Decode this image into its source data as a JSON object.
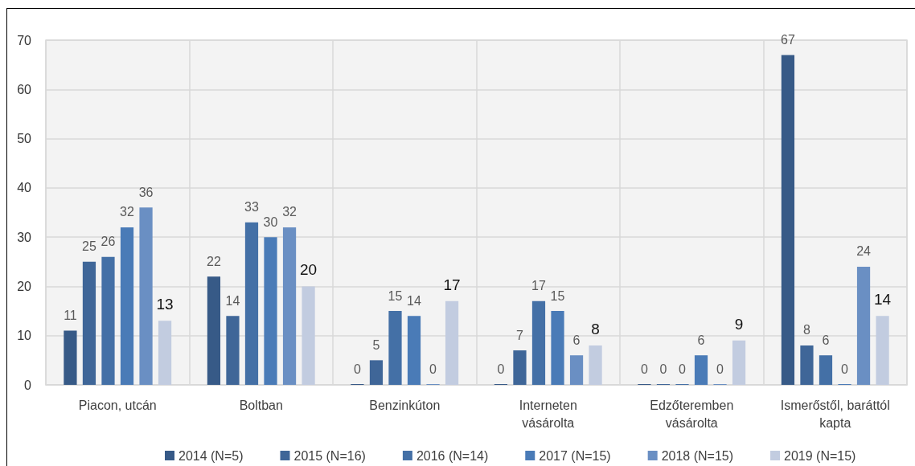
{
  "chart_data": {
    "type": "bar",
    "categories": [
      "Piacon, utcán",
      "Boltban",
      "Benzinkúton",
      "Interneten\nvásárolta",
      "Edzőteremben\nvásárolta",
      "Ismerőstől, baráttól\nkapta"
    ],
    "series": [
      {
        "name": "2014 (N=5)",
        "color": "#375a87",
        "values": [
          11,
          22,
          0,
          0,
          0,
          67
        ]
      },
      {
        "name": "2015 (N=16)",
        "color": "#3f6698",
        "values": [
          25,
          14,
          5,
          7,
          0,
          8
        ]
      },
      {
        "name": "2016 (N=14)",
        "color": "#4470a6",
        "values": [
          26,
          33,
          15,
          17,
          0,
          6
        ]
      },
      {
        "name": "2017 (N=15)",
        "color": "#4a7bb7",
        "values": [
          32,
          30,
          14,
          15,
          6,
          0
        ]
      },
      {
        "name": "2018 (N=15)",
        "color": "#6a8fc3",
        "values": [
          36,
          32,
          0,
          6,
          0,
          24
        ]
      },
      {
        "name": "2019 (N=15)",
        "color": "#c2cce0",
        "values": [
          13,
          20,
          17,
          8,
          9,
          14
        ]
      }
    ],
    "ylim": [
      0,
      70
    ],
    "yticks": [
      0,
      10,
      20,
      30,
      40,
      50,
      60,
      70
    ],
    "grid": true,
    "legend": "bottom",
    "data_labels": true
  }
}
